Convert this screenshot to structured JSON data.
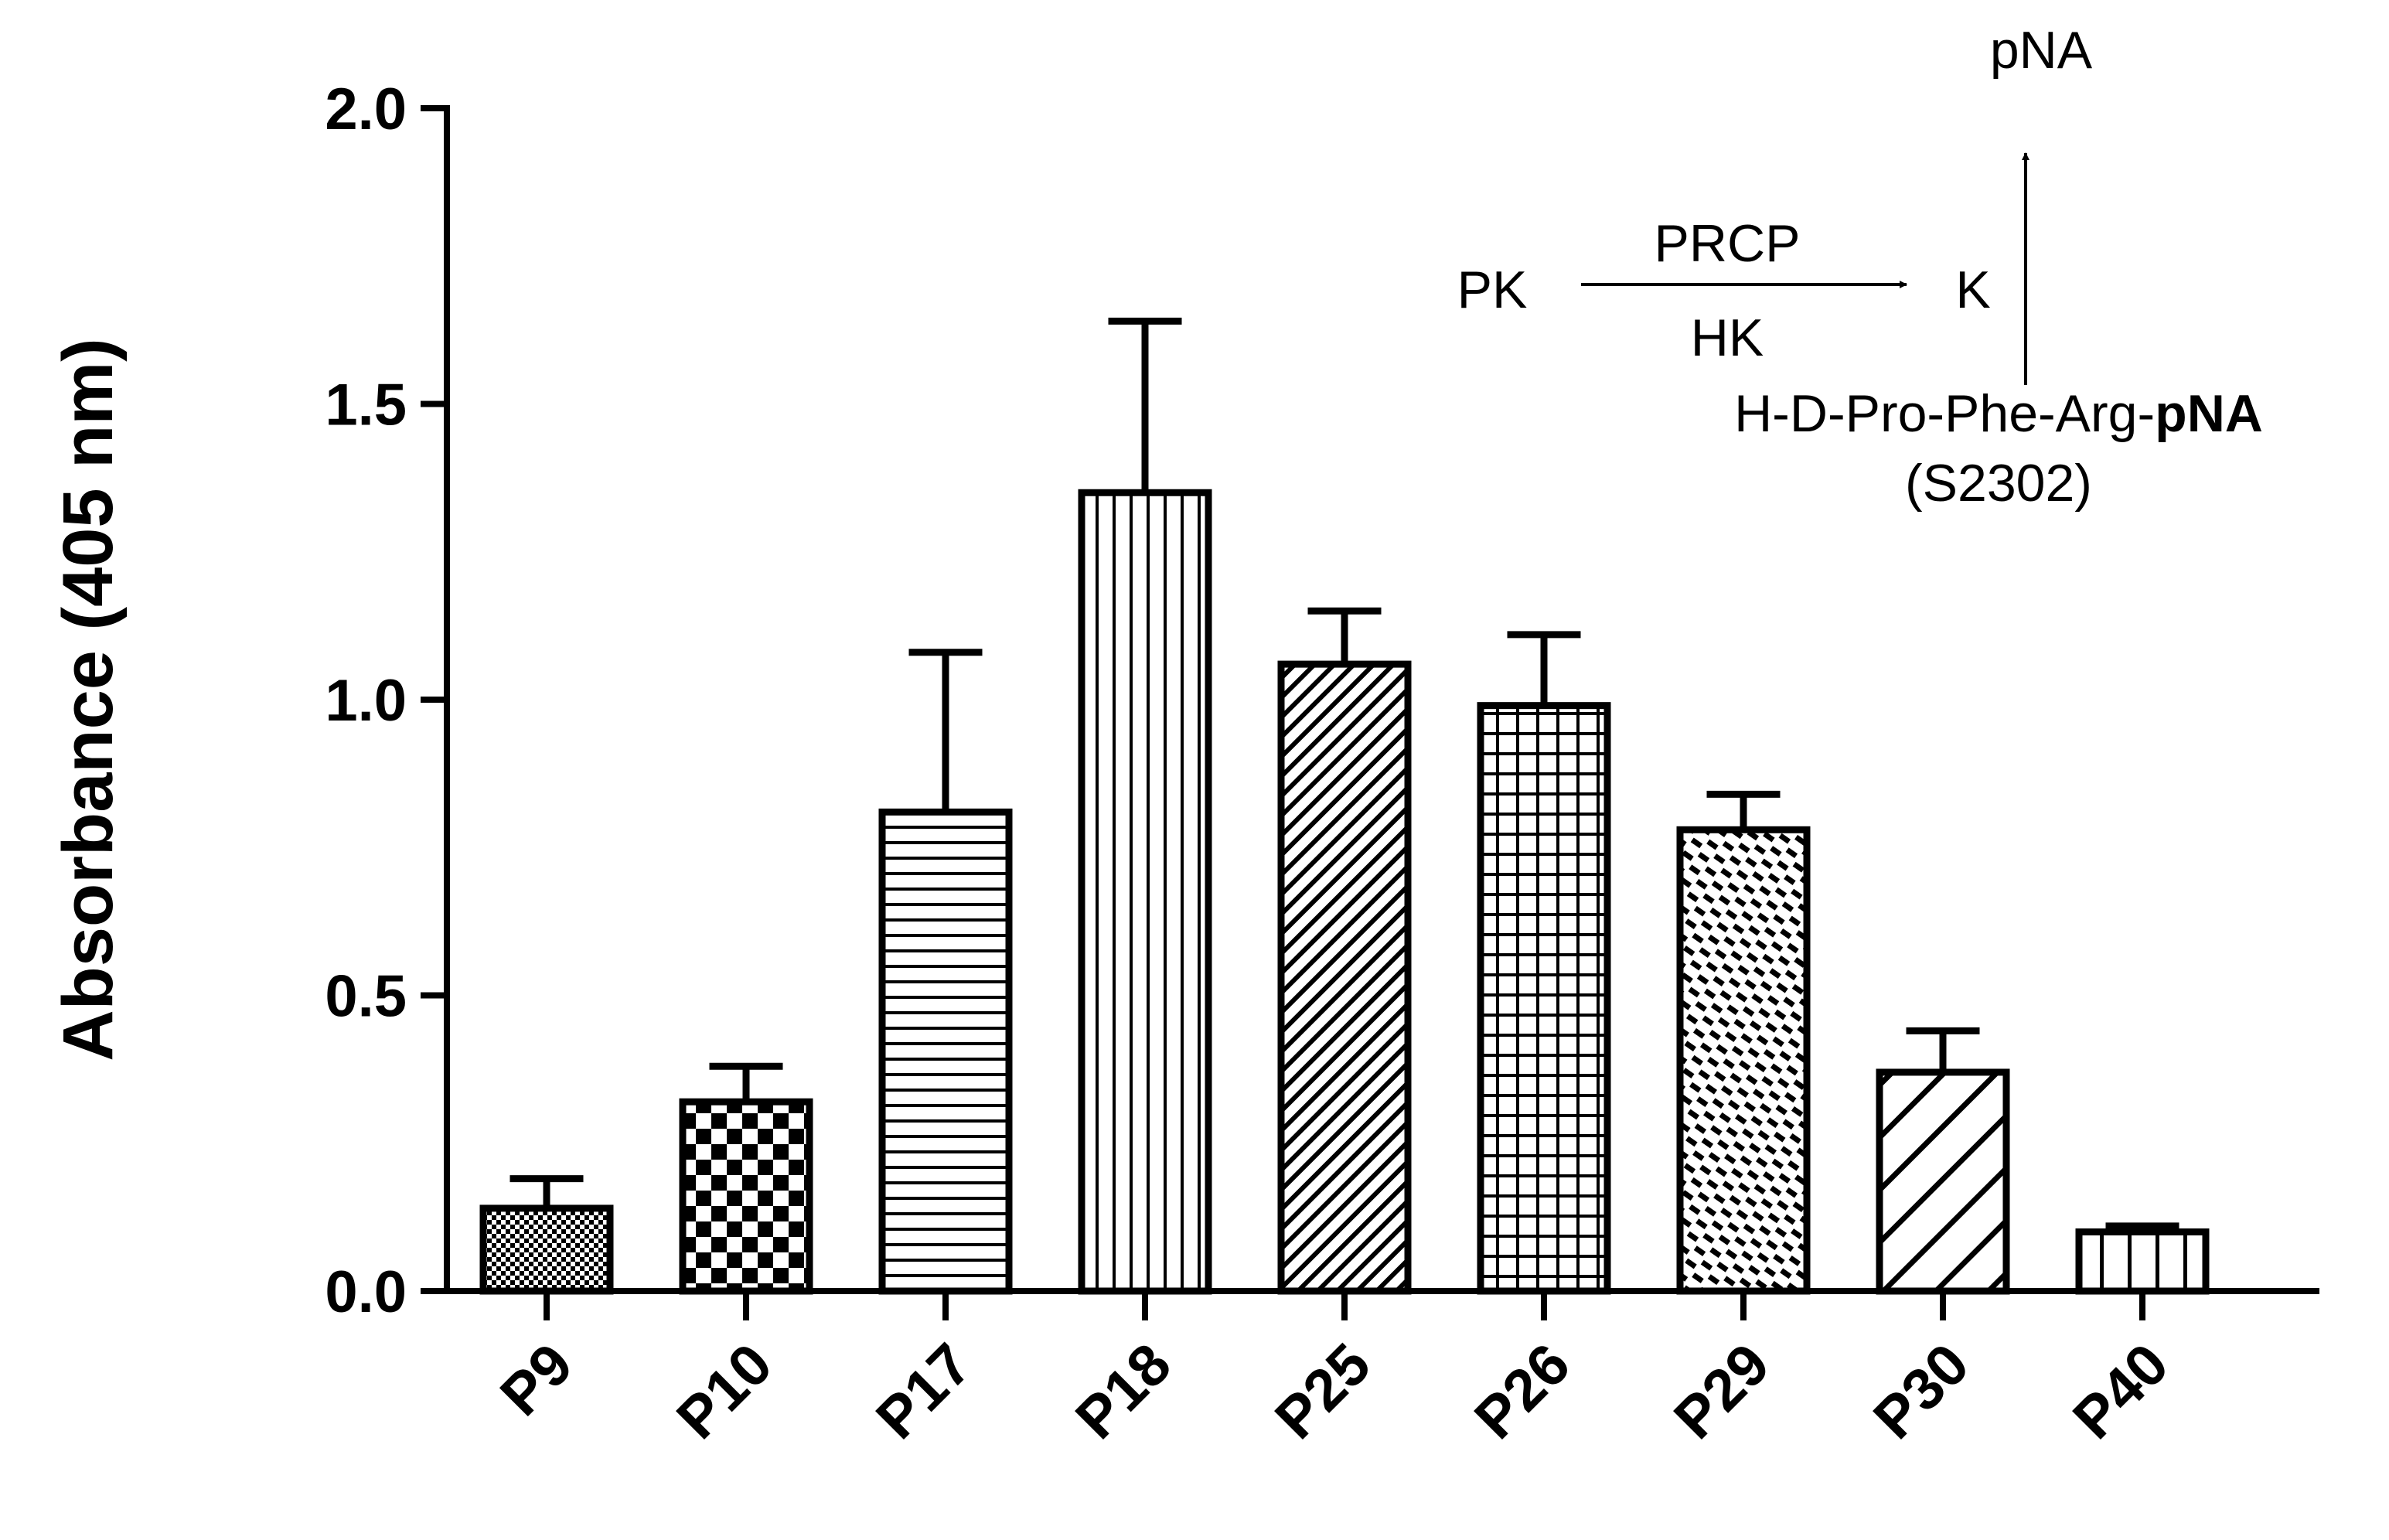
{
  "chart_data": {
    "type": "bar",
    "title": "",
    "xlabel": "",
    "ylabel": "Absorbance (405 nm)",
    "ylim": [
      0,
      2.0
    ],
    "yticks": [
      "0.0",
      "0.5",
      "1.0",
      "1.5",
      "2.0"
    ],
    "categories": [
      "P9",
      "P10",
      "P17",
      "P18",
      "P25",
      "P26",
      "P29",
      "P30",
      "P40"
    ],
    "values": [
      0.14,
      0.32,
      0.81,
      1.35,
      1.06,
      0.99,
      0.78,
      0.37,
      0.1
    ],
    "errors": [
      0.05,
      0.06,
      0.27,
      0.29,
      0.09,
      0.12,
      0.06,
      0.07,
      0.01
    ],
    "patterns": [
      "fine-checker",
      "checker",
      "horizontal-lines",
      "vertical-lines",
      "diagonal-lines-dense",
      "grid",
      "dashed-diagonal",
      "diagonal-lines-wide",
      "vertical-lines-wide"
    ],
    "grid": false,
    "legend": "none"
  },
  "inset": {
    "product": "pNA",
    "left": "PK",
    "enzyme_top": "PRCP",
    "enzyme_bottom": "HK",
    "right": "K",
    "substrate_prefix": "H-D-Pro-Phe-Arg-",
    "substrate_bold": "pNA",
    "substrate_code": "(S2302)"
  }
}
